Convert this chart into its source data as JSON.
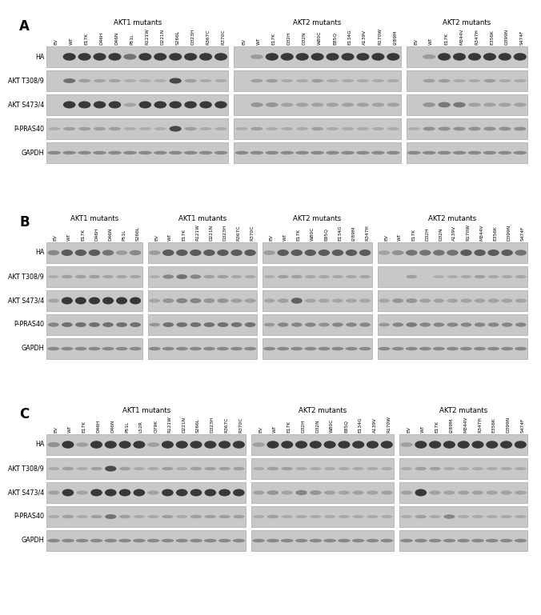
{
  "panel_A": {
    "label": "A",
    "groups": [
      {
        "title": "AKT1 mutants",
        "lanes": [
          "EV",
          "WT",
          "E17K",
          "D46H",
          "D46N",
          "P51L",
          "R121W",
          "D221N",
          "S266L",
          "D323H",
          "R367C",
          "R370C"
        ],
        "blots": {
          "HA": [
            0,
            3,
            3,
            3,
            3,
            1.5,
            3,
            3,
            3,
            3,
            3,
            3
          ],
          "AKT T308/9": [
            0,
            2,
            0.8,
            0.6,
            0.6,
            0.3,
            0.3,
            0.3,
            3,
            0.8,
            0.4,
            0.4
          ],
          "AKT S473/4": [
            0,
            3,
            3,
            3,
            3,
            0.3,
            3,
            3,
            3,
            3,
            3,
            3
          ],
          "P-PRAS40": [
            0.3,
            0.8,
            0.8,
            0.8,
            0.8,
            0.3,
            0.3,
            0.3,
            3,
            0.8,
            0.4,
            0.4
          ],
          "GAPDH": [
            1.5,
            1.5,
            1.5,
            1.5,
            1.5,
            1.5,
            1.5,
            1.5,
            1.5,
            1.5,
            1.5,
            1.5
          ]
        }
      },
      {
        "title": "AKT2 mutants",
        "lanes": [
          "EV",
          "WT",
          "E17K",
          "D32H",
          "D32N",
          "W80C",
          "E85Q",
          "E134G",
          "A139V",
          "R170W",
          "I289M"
        ],
        "blots": {
          "HA": [
            0,
            0.5,
            3,
            3,
            3,
            3,
            3,
            3,
            3,
            3,
            3
          ],
          "AKT T308/9": [
            0,
            0.8,
            0.8,
            0.4,
            0.4,
            0.8,
            0.4,
            0.4,
            0.4,
            0.4,
            0.4
          ],
          "AKT S473/4": [
            0,
            0.8,
            0.8,
            0.4,
            0.4,
            0.4,
            0.4,
            0.4,
            0.4,
            0.4,
            0.4
          ],
          "P-PRAS40": [
            0.3,
            0.8,
            0.4,
            0.4,
            0.4,
            0.8,
            0.4,
            0.4,
            0.4,
            0.4,
            0.4
          ],
          "GAPDH": [
            1.5,
            1.5,
            1.5,
            1.5,
            1.5,
            1.5,
            1.5,
            1.5,
            1.5,
            1.5,
            1.5
          ]
        }
      },
      {
        "title": "AKT2 mutants",
        "lanes": [
          "EV",
          "WT",
          "E17K",
          "M344V",
          "R347H",
          "E356K",
          "D399N",
          "S474F"
        ],
        "blots": {
          "HA": [
            0,
            0.5,
            3,
            3,
            3,
            3,
            3,
            3
          ],
          "AKT T308/9": [
            0,
            0.8,
            0.8,
            0.4,
            0.4,
            0.8,
            0.4,
            0.4
          ],
          "AKT S473/4": [
            0,
            0.8,
            1.5,
            1.5,
            0.4,
            0.4,
            0.4,
            0.4
          ],
          "P-PRAS40": [
            0.3,
            1.2,
            1.2,
            1.2,
            1.2,
            1.2,
            1.2,
            1.2
          ],
          "GAPDH": [
            1.5,
            1.5,
            1.5,
            1.5,
            1.5,
            1.5,
            1.5,
            1.5
          ]
        }
      }
    ]
  },
  "panel_B": {
    "label": "B",
    "groups": [
      {
        "title": "AKT1 mutants",
        "lanes": [
          "EV",
          "WT",
          "E17K",
          "D46H",
          "D46N",
          "P51L",
          "S266L"
        ],
        "blots": {
          "HA": [
            1,
            2,
            2,
            2,
            1.5,
            0.5,
            1
          ],
          "AKT T308/9": [
            0.3,
            0.8,
            0.8,
            0.8,
            0.6,
            0.5,
            0.6
          ],
          "AKT S473/4": [
            0.3,
            3,
            3,
            3,
            3,
            3,
            3
          ],
          "P-PRAS40": [
            1.5,
            2,
            2,
            2,
            2,
            2,
            2
          ],
          "GAPDH": [
            0.8,
            0.8,
            0.8,
            0.8,
            0.8,
            0.8,
            0.8
          ]
        }
      },
      {
        "title": "AKT1 mutants",
        "lanes": [
          "EV",
          "WT",
          "E17K",
          "R121W",
          "D221N",
          "D323H",
          "R367C",
          "R370C"
        ],
        "blots": {
          "HA": [
            0.5,
            2,
            2,
            2,
            2,
            2,
            2,
            2
          ],
          "AKT T308/9": [
            0.3,
            1.5,
            2,
            1.5,
            0.8,
            0.8,
            0.5,
            0.5
          ],
          "AKT S473/4": [
            0.3,
            0.8,
            1.2,
            1.2,
            0.8,
            0.8,
            0.5,
            0.5
          ],
          "P-PRAS40": [
            1,
            2,
            2,
            2,
            2,
            2,
            2,
            2
          ],
          "GAPDH": [
            0.8,
            0.8,
            0.8,
            0.8,
            0.8,
            0.8,
            0.8,
            0.8
          ]
        }
      },
      {
        "title": "AKT2 mutants",
        "lanes": [
          "EV",
          "WT",
          "E17K",
          "W80C",
          "E85Q",
          "E134G",
          "I289M",
          "R347H"
        ],
        "blots": {
          "HA": [
            0.5,
            2,
            2,
            2,
            2,
            2,
            2,
            2
          ],
          "AKT T308/9": [
            0.3,
            0.8,
            0.8,
            0.5,
            0.5,
            0.5,
            0.5,
            0.5
          ],
          "AKT S473/4": [
            0.3,
            0.5,
            2,
            0.3,
            0.3,
            0.3,
            0.3,
            0.3
          ],
          "P-PRAS40": [
            1,
            1.5,
            1.5,
            1.5,
            1.2,
            1.5,
            1.5,
            1.5
          ],
          "GAPDH": [
            0.8,
            0.8,
            0.8,
            0.8,
            0.8,
            0.8,
            0.8,
            0.8
          ]
        }
      },
      {
        "title": "AKT2 mutants",
        "lanes": [
          "EV",
          "WT",
          "E17K",
          "D32H",
          "D32N",
          "A139V",
          "R170W",
          "M344V",
          "E356K",
          "D399N",
          "S474F"
        ],
        "blots": {
          "HA": [
            0.3,
            0.8,
            1.5,
            1.5,
            1.5,
            1.5,
            2,
            2,
            2,
            2,
            1.5
          ],
          "AKT T308/9": [
            0,
            0,
            0.8,
            0,
            0.3,
            0.3,
            0.5,
            0.8,
            0.5,
            0.5,
            0.5
          ],
          "AKT S473/4": [
            0.3,
            0.8,
            0.8,
            0.4,
            0.4,
            0.4,
            0.4,
            0.4,
            0.4,
            0.4,
            0.4
          ],
          "P-PRAS40": [
            1,
            1.5,
            1.8,
            1.5,
            1.5,
            1.5,
            1.5,
            1.5,
            1.5,
            1.5,
            1.5
          ],
          "GAPDH": [
            0.8,
            0.8,
            0.8,
            0.8,
            0.8,
            0.8,
            0.8,
            0.8,
            0.8,
            0.8,
            0.8
          ]
        }
      }
    ]
  },
  "panel_C": {
    "label": "C",
    "groups": [
      {
        "title": "AKT1 mutants",
        "lanes": [
          "EV",
          "WT",
          "E17K",
          "D46H",
          "D46N",
          "P51L",
          "L52R",
          "Q79K",
          "R121W",
          "D221N",
          "S266L",
          "D323H",
          "R367C",
          "R370C"
        ],
        "blots": {
          "HA": [
            0.8,
            3,
            0.4,
            3,
            3,
            3,
            3,
            0.4,
            3,
            3,
            3,
            3,
            3,
            3
          ],
          "AKT T308/9": [
            0.4,
            0.8,
            0.4,
            0.8,
            3,
            0.8,
            0.4,
            0.4,
            0.8,
            0.4,
            0.8,
            0.8,
            0.8,
            0.8
          ],
          "AKT S473/4": [
            0.4,
            3,
            0.4,
            3,
            3,
            3,
            3,
            0.4,
            3,
            3,
            3,
            3,
            3,
            3
          ],
          "P-PRAS40": [
            0.4,
            0.8,
            0.4,
            0.8,
            2,
            0.8,
            0.4,
            0.4,
            0.8,
            0.4,
            0.8,
            0.8,
            0.8,
            0.8
          ],
          "GAPDH": [
            1.5,
            1.5,
            1.5,
            1.5,
            1.5,
            1.5,
            1.5,
            1.5,
            1.5,
            1.5,
            1.5,
            1.5,
            1.5,
            1.5
          ]
        }
      },
      {
        "title": "AKT2 mutants",
        "lanes": [
          "EV",
          "WT",
          "E17K",
          "D32H",
          "D32N",
          "W80C",
          "E85Q",
          "E134G",
          "A139V",
          "R170W"
        ],
        "blots": {
          "HA": [
            0.4,
            3,
            3,
            3,
            3,
            3,
            3,
            3,
            3,
            3
          ],
          "AKT T308/9": [
            0.4,
            0.8,
            0.8,
            0.4,
            0.4,
            0.4,
            0.4,
            0.4,
            0.4,
            0.4
          ],
          "AKT S473/4": [
            0.4,
            0.8,
            0.4,
            1.2,
            0.8,
            0.4,
            0.4,
            0.4,
            0.4,
            0.4
          ],
          "P-PRAS40": [
            0.4,
            0.8,
            0.4,
            0.4,
            0.4,
            0.4,
            0.4,
            0.4,
            0.4,
            0.4
          ],
          "GAPDH": [
            1.5,
            1.5,
            1.5,
            1.5,
            1.5,
            1.5,
            1.5,
            1.5,
            1.5,
            1.5
          ]
        }
      },
      {
        "title": "AKT2 mutants",
        "lanes": [
          "EV",
          "WT",
          "E17K",
          "I289M",
          "M344V",
          "R347H",
          "E356K",
          "D399N",
          "S474F"
        ],
        "blots": {
          "HA": [
            0.4,
            3,
            3,
            3,
            3,
            3,
            3,
            3,
            3
          ],
          "AKT T308/9": [
            0.4,
            0.8,
            0.8,
            0.4,
            0.4,
            0.4,
            0.4,
            0.4,
            0.4
          ],
          "AKT S473/4": [
            0.4,
            3,
            0.4,
            0.4,
            0.4,
            0.4,
            0.4,
            0.4,
            0.4
          ],
          "P-PRAS40": [
            0.4,
            0.8,
            0.4,
            1.5,
            0.4,
            0.4,
            0.4,
            0.4,
            0.4
          ],
          "GAPDH": [
            1.5,
            1.5,
            1.5,
            1.5,
            1.5,
            1.5,
            1.5,
            1.5,
            1.5
          ]
        }
      }
    ]
  },
  "row_labels": [
    "HA",
    "AKT T308/9",
    "AKT S473/4",
    "P-PRAS40",
    "GAPDH"
  ],
  "background_color": "#ffffff",
  "blot_bg": "#c8c8c8",
  "blot_border": "#999999"
}
